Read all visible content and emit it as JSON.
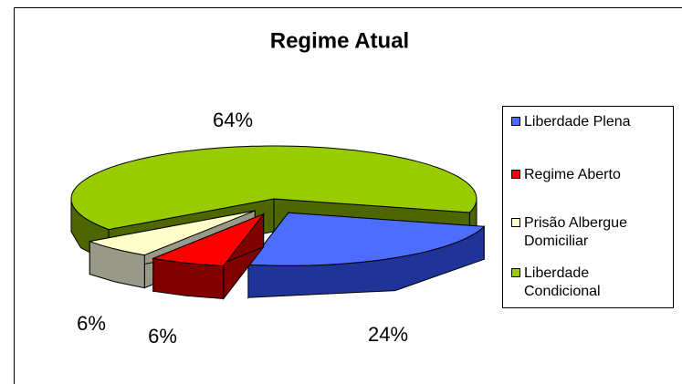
{
  "chart_data": {
    "type": "pie3d",
    "title": "Regime Atual",
    "categories": [
      "Liberdade Plena",
      "Regime Aberto",
      "Prisão Albergue Domiciliar",
      "Liberdade Condicional"
    ],
    "values": [
      24,
      6,
      6,
      64
    ],
    "value_labels": [
      "24%",
      "6%",
      "6%",
      "64%"
    ],
    "colors": [
      "#4d6dff",
      "#ff0000",
      "#ffffcc",
      "#99cc00"
    ],
    "side_colors": [
      "#1f3399",
      "#800000",
      "#99998a",
      "#4d6600"
    ],
    "legend": "right"
  }
}
